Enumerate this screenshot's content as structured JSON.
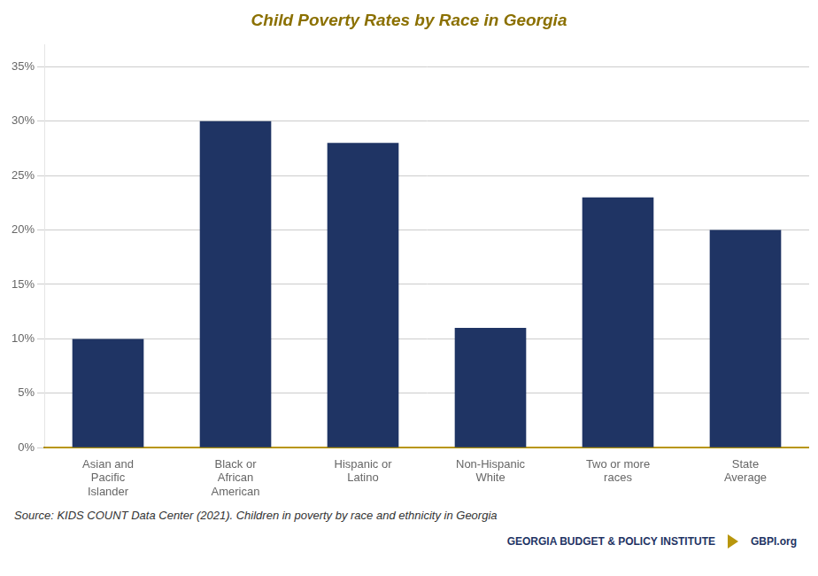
{
  "chart_data": {
    "type": "bar",
    "title": "Child Poverty Rates by Race in Georgia",
    "categories": [
      "Asian and\nPacific\nIslander",
      "Black or\nAfrican\nAmerican",
      "Hispanic or\nLatino",
      "Non-Hispanic\nWhite",
      "Two or more\nraces",
      "State\nAverage"
    ],
    "values": [
      0.1,
      0.3,
      0.28,
      0.11,
      0.23,
      0.2
    ],
    "color": "#1F3464",
    "ylim": [
      0,
      0.37
    ],
    "yticks": [
      {
        "value": 0.0,
        "label": "0%"
      },
      {
        "value": 0.05,
        "label": "5%"
      },
      {
        "value": 0.1,
        "label": "10%"
      },
      {
        "value": 0.15,
        "label": "15%"
      },
      {
        "value": 0.2,
        "label": "20%"
      },
      {
        "value": 0.25,
        "label": "25%"
      },
      {
        "value": 0.3,
        "label": "30%"
      },
      {
        "value": 0.35,
        "label": "35%"
      }
    ],
    "grid": true,
    "annotations": [
      "Source: KIDS COUNT Data Center (2021). Children in poverty by race and ethnicity in Georgia",
      "GEORGIA BUDGET & POLICY INSTITUTE",
      "GBPI.org"
    ]
  }
}
